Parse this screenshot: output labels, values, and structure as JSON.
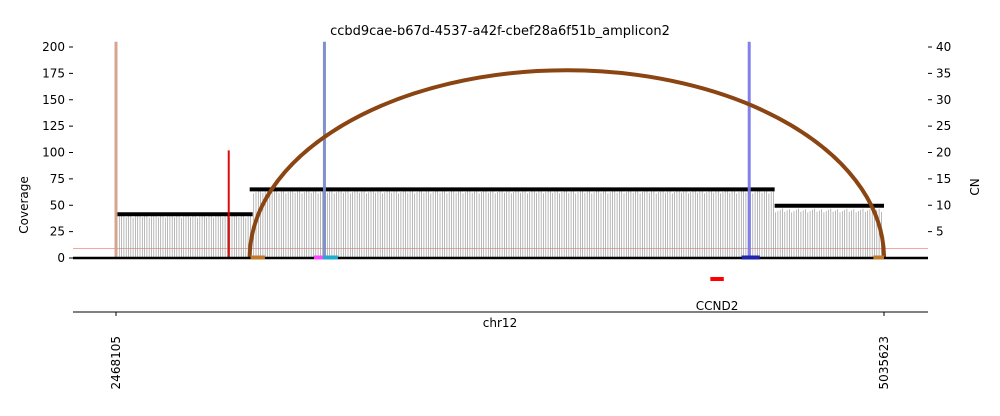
{
  "chart_data": {
    "type": "amplicon-coverage",
    "title": "ccbd9cae-b67d-4537-a42f-cbef28a6f51b_amplicon2",
    "xlabel": "chr12",
    "ylabel_left": "Coverage",
    "ylabel_right": "CN",
    "x_range": [
      2468105,
      5035623
    ],
    "x_tick_labels": [
      "2468105",
      "5035623"
    ],
    "y_left_range": [
      0,
      200
    ],
    "y_left_ticks": [
      0,
      25,
      50,
      75,
      100,
      125,
      150,
      175,
      200
    ],
    "y_right_range": [
      0,
      40
    ],
    "y_right_ticks": [
      5,
      10,
      15,
      20,
      25,
      30,
      35,
      40
    ],
    "coverage_threshold": 9,
    "copy_number_segments": [
      {
        "start": 2468105,
        "end": 2925000,
        "cn": 8.3
      },
      {
        "start": 2915000,
        "end": 4670000,
        "cn": 13.0
      },
      {
        "start": 4670000,
        "end": 5035623,
        "cn": 9.9
      }
    ],
    "coverage_regions": [
      {
        "start": 2468105,
        "end": 2925000,
        "coverage": 40
      },
      {
        "start": 2925000,
        "end": 4670000,
        "coverage": 63
      },
      {
        "start": 4670000,
        "end": 5035623,
        "coverage": 45
      }
    ],
    "discordant_edges": [
      {
        "pos": 2468105,
        "height": 205,
        "color": "#d4a08a"
      },
      {
        "pos": 2845000,
        "height": 102,
        "color": "#dd0000"
      },
      {
        "pos": 3165000,
        "height": 205,
        "color": "#7b8cc9"
      },
      {
        "pos": 4585000,
        "height": 205,
        "color": "#7b7be8"
      }
    ],
    "breakpoint_arc": {
      "start": 2915000,
      "end": 5035623,
      "peak_coverage": 178,
      "color": "#8b4513"
    },
    "interval_marks": [
      {
        "start": 2918000,
        "end": 2966000,
        "color": "#c07a2a"
      },
      {
        "start": 3130000,
        "end": 3190000,
        "color": "#ff44ff"
      },
      {
        "start": 3160000,
        "end": 3210000,
        "color": "#22aacc"
      },
      {
        "start": 4560000,
        "end": 4620000,
        "color": "#2222aa"
      },
      {
        "start": 5000000,
        "end": 5035623,
        "color": "#c07a2a"
      }
    ],
    "genes": [
      {
        "name": "CCND2",
        "start": 4455000,
        "end": 4500000,
        "color": "#ff0000"
      }
    ],
    "grid": false
  }
}
